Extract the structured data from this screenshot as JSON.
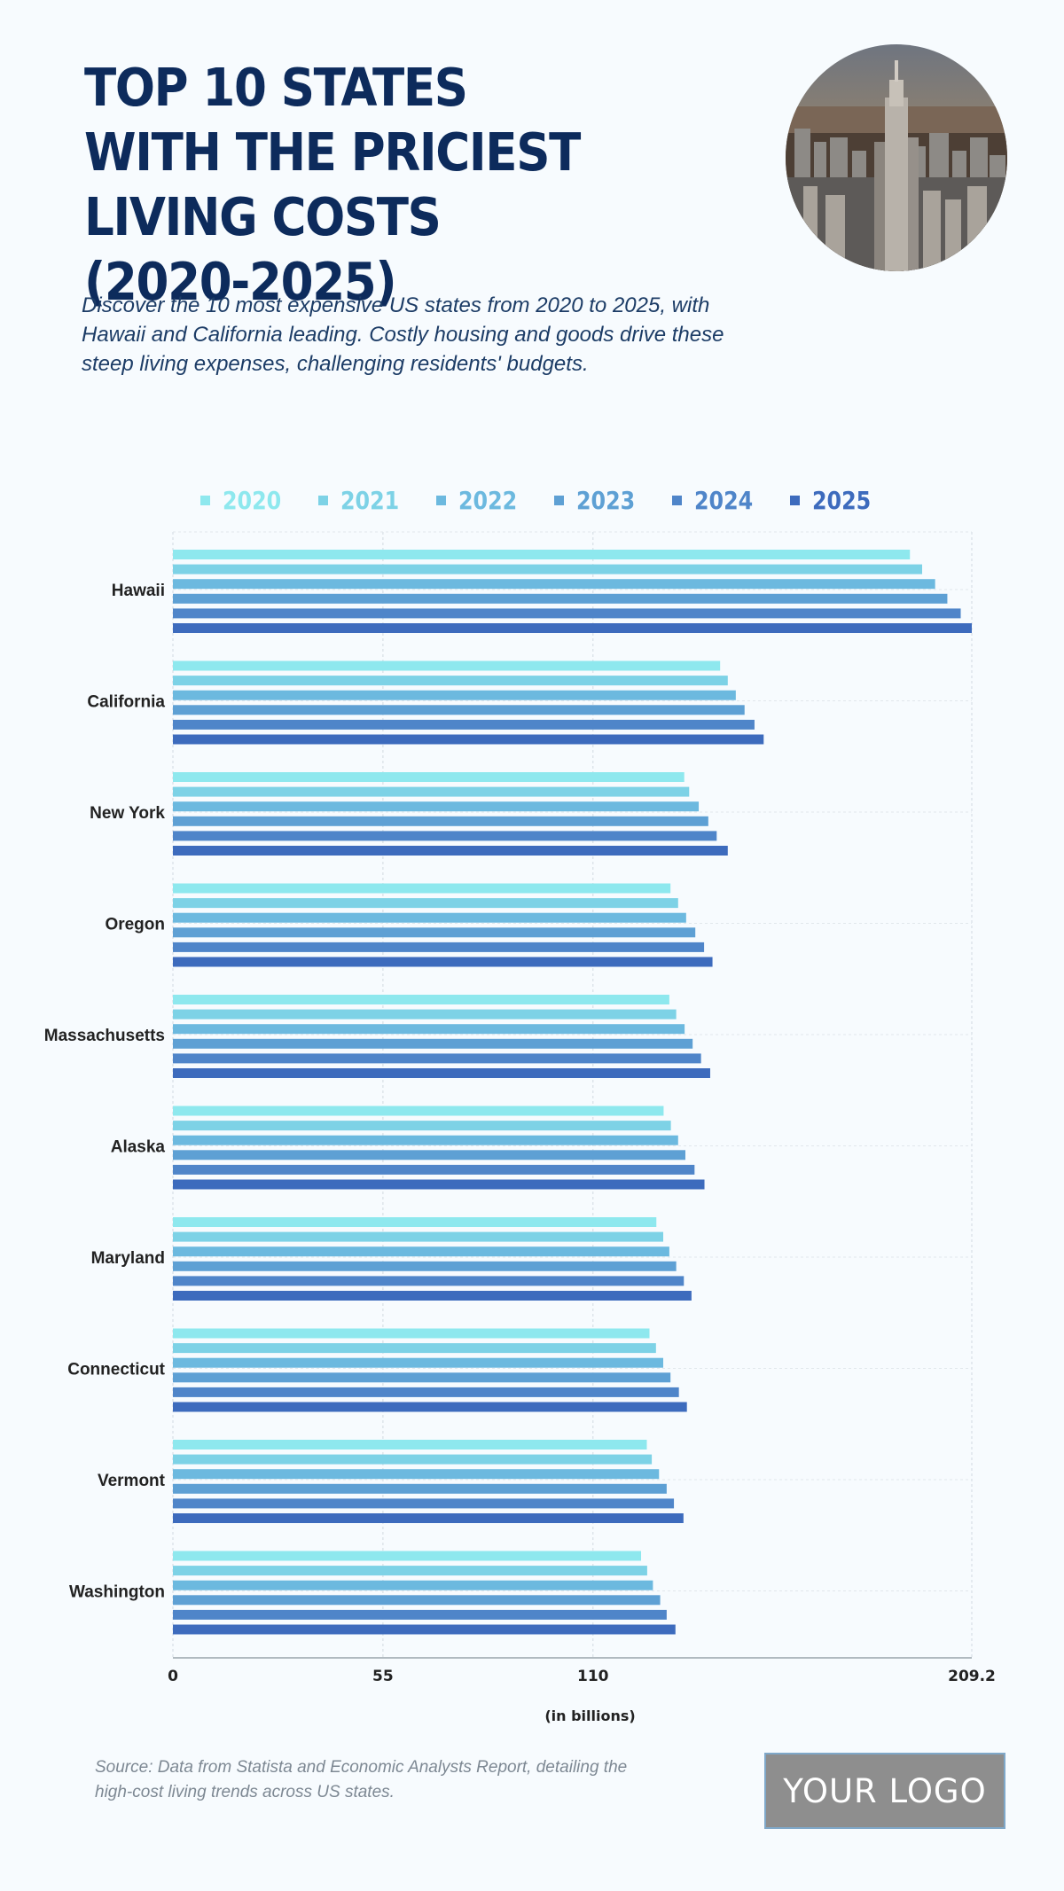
{
  "header": {
    "title": "TOP 10 STATES WITH THE PRICIEST LIVING COSTS (2020-2025)",
    "subtitle": "Discover the 10 most expensive US states from 2020 to 2025, with Hawaii and California leading. Costly housing and goods drive these steep living expenses, challenging residents' budgets."
  },
  "footer": {
    "source": "Source: Data from Statista and Economic Analysts Report, detailing the high-cost living trends across US states.",
    "logo_text": "YOUR LOGO"
  },
  "colors": {
    "2020": "#8ee8ee",
    "2021": "#7dd2e6",
    "2022": "#6cb9df",
    "2023": "#5ea0d4",
    "2024": "#4f85c9",
    "2025": "#3d6bbd",
    "title": "#0d2b5c",
    "grid": "#d7dfe6"
  },
  "chart_data": {
    "type": "bar",
    "orientation": "horizontal",
    "categories": [
      "Hawaii",
      "California",
      "New York",
      "Oregon",
      "Massachusetts",
      "Alaska",
      "Maryland",
      "Connecticut",
      "Vermont",
      "Washington"
    ],
    "series": [
      {
        "name": "2020",
        "values": [
          193,
          143.3,
          133.9,
          130.3,
          130,
          128.5,
          126.6,
          124.8,
          124.1,
          122.6
        ]
      },
      {
        "name": "2021",
        "values": [
          196.2,
          145.3,
          135.2,
          132.3,
          131.8,
          130.4,
          128.4,
          126.5,
          125.4,
          124.2
        ]
      },
      {
        "name": "2022",
        "values": [
          199.6,
          147.4,
          137.7,
          134.4,
          134,
          132.3,
          130,
          128.4,
          127.3,
          125.7
        ]
      },
      {
        "name": "2023",
        "values": [
          202.8,
          149.7,
          140.2,
          136.8,
          136.1,
          134.2,
          131.8,
          130.3,
          129.3,
          127.6
        ]
      },
      {
        "name": "2024",
        "values": [
          206.3,
          152.3,
          142.4,
          139.1,
          138.3,
          136.6,
          133.8,
          132.5,
          131.2,
          129.3
        ]
      },
      {
        "name": "2025",
        "values": [
          209.2,
          154.7,
          145.3,
          141.3,
          140.7,
          139.2,
          135.8,
          134.6,
          133.7,
          131.6
        ]
      }
    ],
    "xlim": [
      0,
      209.2
    ],
    "xticks": [
      "0",
      "55",
      "110",
      "209.2"
    ],
    "xlabel": "(in billions)",
    "ylabel": "",
    "legend_position": "top",
    "grid": true
  }
}
